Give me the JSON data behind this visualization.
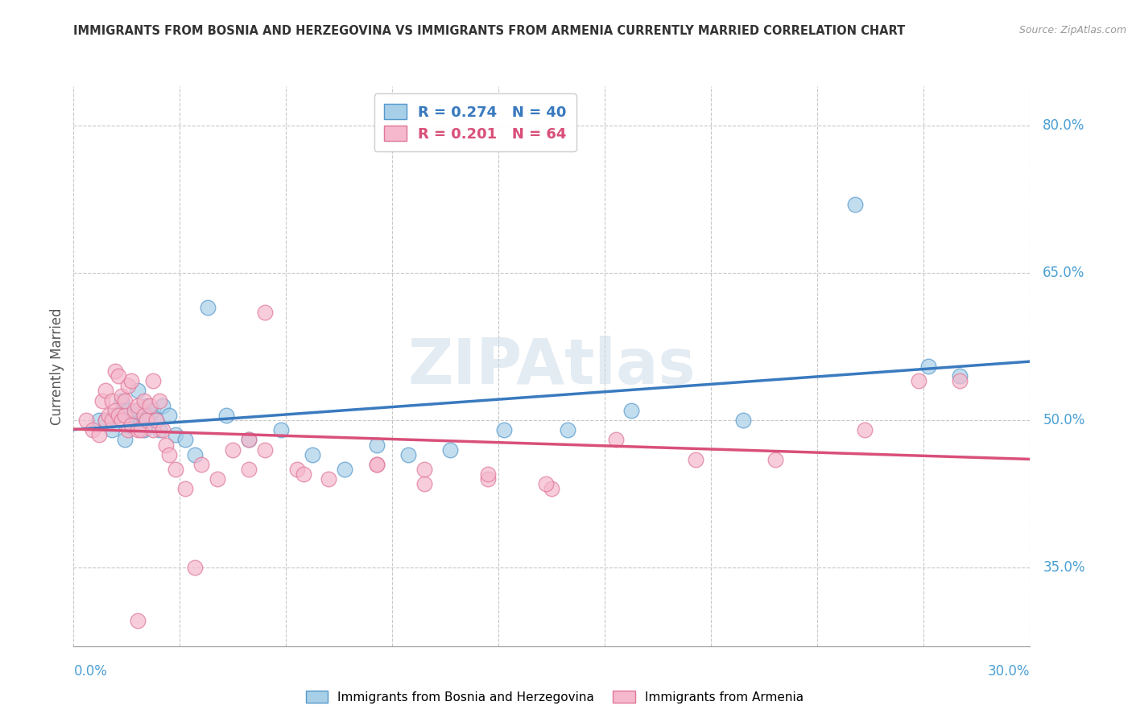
{
  "title": "IMMIGRANTS FROM BOSNIA AND HERZEGOVINA VS IMMIGRANTS FROM ARMENIA CURRENTLY MARRIED CORRELATION CHART",
  "source": "Source: ZipAtlas.com",
  "ylabel": "Currently Married",
  "xlim": [
    0.0,
    0.3
  ],
  "ylim": [
    0.27,
    0.84
  ],
  "right_yticks": [
    0.35,
    0.5,
    0.65,
    0.8
  ],
  "right_yticklabels": [
    "35.0%",
    "50.0%",
    "65.0%",
    "80.0%"
  ],
  "legend_blue_R": "R = 0.274",
  "legend_blue_N": "N = 40",
  "legend_pink_R": "R = 0.201",
  "legend_pink_N": "N = 64",
  "blue_dot_color": "#a8cfe8",
  "pink_dot_color": "#f5b8cc",
  "blue_edge_color": "#5599cc",
  "pink_edge_color": "#e07898",
  "blue_line": "#3a7abf",
  "pink_line": "#d9507a",
  "watermark": "ZIPAtlas",
  "bosnia_x": [
    0.008,
    0.01,
    0.012,
    0.013,
    0.015,
    0.016,
    0.017,
    0.018,
    0.019,
    0.02,
    0.02,
    0.021,
    0.022,
    0.022,
    0.023,
    0.024,
    0.025,
    0.026,
    0.027,
    0.028,
    0.03,
    0.032,
    0.035,
    0.038,
    0.042,
    0.048,
    0.055,
    0.065,
    0.075,
    0.085,
    0.095,
    0.105,
    0.118,
    0.135,
    0.155,
    0.175,
    0.21,
    0.245,
    0.268,
    0.278
  ],
  "bosnia_y": [
    0.5,
    0.5,
    0.49,
    0.505,
    0.52,
    0.48,
    0.51,
    0.495,
    0.505,
    0.51,
    0.53,
    0.5,
    0.505,
    0.49,
    0.515,
    0.505,
    0.51,
    0.5,
    0.49,
    0.515,
    0.505,
    0.485,
    0.48,
    0.465,
    0.615,
    0.505,
    0.48,
    0.49,
    0.465,
    0.45,
    0.475,
    0.465,
    0.47,
    0.49,
    0.49,
    0.51,
    0.5,
    0.72,
    0.555,
    0.545
  ],
  "armenia_x": [
    0.004,
    0.006,
    0.008,
    0.009,
    0.01,
    0.01,
    0.011,
    0.012,
    0.012,
    0.013,
    0.013,
    0.014,
    0.014,
    0.015,
    0.015,
    0.016,
    0.016,
    0.017,
    0.017,
    0.018,
    0.018,
    0.019,
    0.02,
    0.02,
    0.021,
    0.022,
    0.022,
    0.023,
    0.024,
    0.025,
    0.025,
    0.026,
    0.027,
    0.028,
    0.029,
    0.03,
    0.032,
    0.035,
    0.04,
    0.045,
    0.05,
    0.055,
    0.06,
    0.07,
    0.08,
    0.095,
    0.11,
    0.13,
    0.15,
    0.17,
    0.195,
    0.22,
    0.248,
    0.265,
    0.278,
    0.148,
    0.095,
    0.11,
    0.13,
    0.06,
    0.072,
    0.055,
    0.038,
    0.02
  ],
  "armenia_y": [
    0.5,
    0.49,
    0.485,
    0.52,
    0.5,
    0.53,
    0.505,
    0.52,
    0.5,
    0.51,
    0.55,
    0.505,
    0.545,
    0.5,
    0.525,
    0.505,
    0.52,
    0.49,
    0.535,
    0.495,
    0.54,
    0.51,
    0.49,
    0.515,
    0.49,
    0.505,
    0.52,
    0.5,
    0.515,
    0.49,
    0.54,
    0.5,
    0.52,
    0.49,
    0.475,
    0.465,
    0.45,
    0.43,
    0.455,
    0.44,
    0.47,
    0.48,
    0.47,
    0.45,
    0.44,
    0.455,
    0.435,
    0.44,
    0.43,
    0.48,
    0.46,
    0.46,
    0.49,
    0.54,
    0.54,
    0.435,
    0.455,
    0.45,
    0.445,
    0.61,
    0.445,
    0.45,
    0.35,
    0.296
  ]
}
